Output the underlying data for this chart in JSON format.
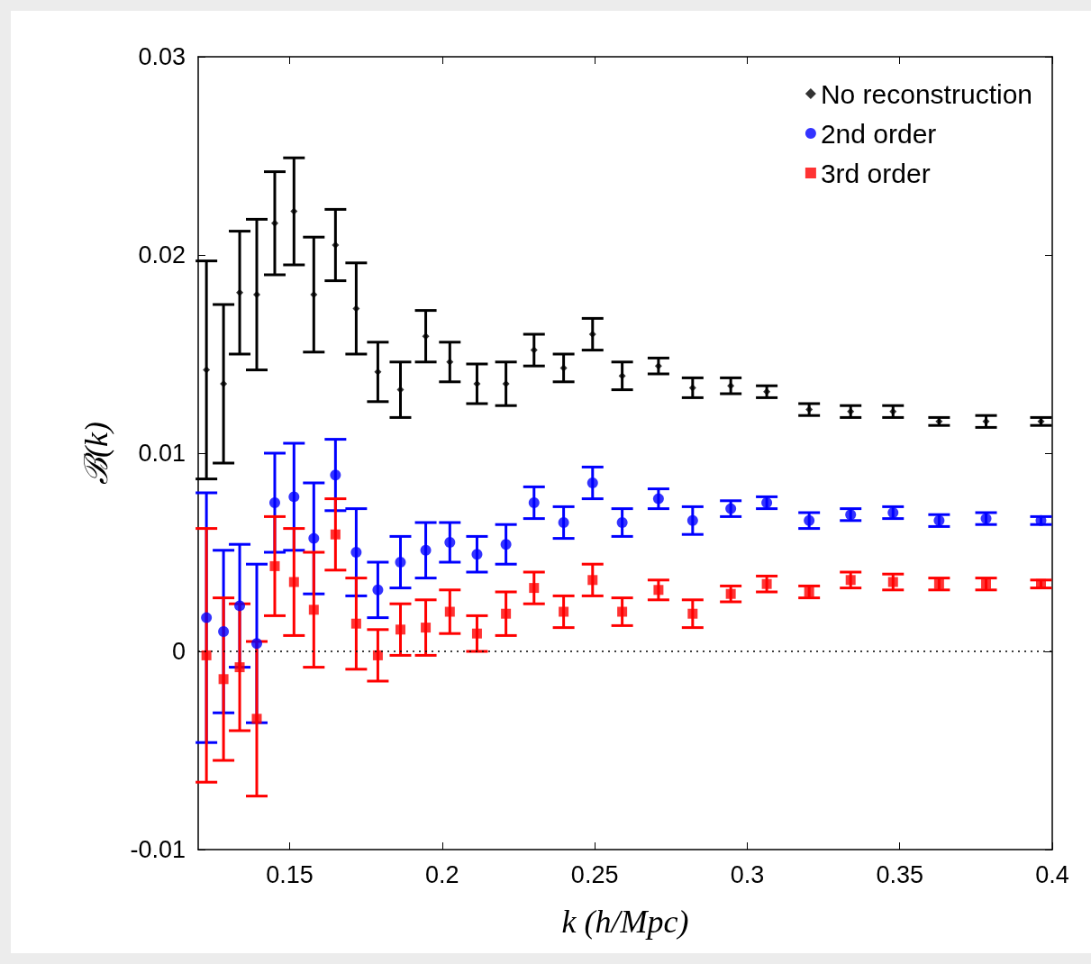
{
  "chart_data": {
    "type": "scatter",
    "xlabel": "k (h/Mpc)",
    "ylabel": "ℬ(k)",
    "x": [
      0.1227,
      0.1283,
      0.1336,
      0.1392,
      0.1451,
      0.1514,
      0.1579,
      0.165,
      0.1718,
      0.1789,
      0.1863,
      0.1946,
      0.2025,
      0.2114,
      0.2209,
      0.2301,
      0.2398,
      0.2493,
      0.259,
      0.2709,
      0.2821,
      0.2946,
      0.3064,
      0.3203,
      0.3339,
      0.3478,
      0.3629,
      0.3783,
      0.3963
    ],
    "series": [
      {
        "name": "No reconstruction",
        "color": "#000000",
        "marker": "diamond",
        "values": [
          0.0142,
          0.0135,
          0.0181,
          0.018,
          0.0216,
          0.0222,
          0.018,
          0.0205,
          0.0173,
          0.0141,
          0.0132,
          0.0159,
          0.0146,
          0.0135,
          0.0135,
          0.0152,
          0.0143,
          0.016,
          0.0139,
          0.0144,
          0.0133,
          0.0134,
          0.0131,
          0.0122,
          0.0121,
          0.0121,
          0.0116,
          0.0116,
          0.0116
        ],
        "errors": [
          0.0055,
          0.004,
          0.0031,
          0.0038,
          0.0026,
          0.0027,
          0.0029,
          0.0018,
          0.0023,
          0.0015,
          0.0014,
          0.0013,
          0.001,
          0.001,
          0.0011,
          0.0008,
          0.0007,
          0.0008,
          0.0007,
          0.0004,
          0.0005,
          0.0004,
          0.0003,
          0.0003,
          0.0003,
          0.0003,
          0.0002,
          0.0003,
          0.0002
        ]
      },
      {
        "name": "2nd order",
        "color": "#0000ff",
        "marker": "circle",
        "values": [
          0.0017,
          0.001,
          0.0023,
          0.0004,
          0.0075,
          0.0078,
          0.0057,
          0.0089,
          0.005,
          0.0031,
          0.0045,
          0.0051,
          0.0055,
          0.0049,
          0.0054,
          0.0075,
          0.0065,
          0.0085,
          0.0065,
          0.0077,
          0.0066,
          0.0072,
          0.0075,
          0.0066,
          0.0069,
          0.007,
          0.0066,
          0.0067,
          0.0066
        ],
        "errors": [
          0.0063,
          0.0041,
          0.0031,
          0.004,
          0.0025,
          0.0027,
          0.0028,
          0.0018,
          0.0022,
          0.0014,
          0.0013,
          0.0014,
          0.001,
          0.0009,
          0.001,
          0.0008,
          0.0008,
          0.0008,
          0.0007,
          0.0005,
          0.0007,
          0.0004,
          0.0003,
          0.0004,
          0.0003,
          0.0003,
          0.0003,
          0.0003,
          0.0002
        ]
      },
      {
        "name": "3rd order",
        "color": "#ff0000",
        "marker": "square",
        "values": [
          -0.0002,
          -0.0014,
          -0.0008,
          -0.0034,
          0.0043,
          0.0035,
          0.0021,
          0.0059,
          0.0014,
          -0.0002,
          0.0011,
          0.0012,
          0.002,
          0.0009,
          0.0019,
          0.0032,
          0.002,
          0.0036,
          0.002,
          0.0031,
          0.0019,
          0.0029,
          0.0034,
          0.003,
          0.0036,
          0.0035,
          0.0034,
          0.0034,
          0.0034
        ],
        "errors": [
          0.0064,
          0.0041,
          0.0032,
          0.0039,
          0.0025,
          0.0027,
          0.0029,
          0.0018,
          0.0023,
          0.0013,
          0.0013,
          0.0014,
          0.0011,
          0.0009,
          0.0011,
          0.0008,
          0.0008,
          0.0008,
          0.0007,
          0.0005,
          0.0007,
          0.0004,
          0.0004,
          0.0003,
          0.0004,
          0.0004,
          0.0003,
          0.0003,
          0.0002
        ]
      }
    ],
    "xlim": [
      0.12,
      0.4
    ],
    "xticks": [
      0.15,
      0.2,
      0.25,
      0.3,
      0.35,
      0.4
    ],
    "ylim": [
      -0.01,
      0.03
    ],
    "yticks": [
      -0.01,
      0,
      0.01,
      0.02,
      0.03
    ],
    "ref_lines": [
      {
        "axis": "y",
        "value": 0,
        "color": "#000000",
        "line_style": "dotted"
      }
    ],
    "grid": false,
    "legend": "top right"
  }
}
